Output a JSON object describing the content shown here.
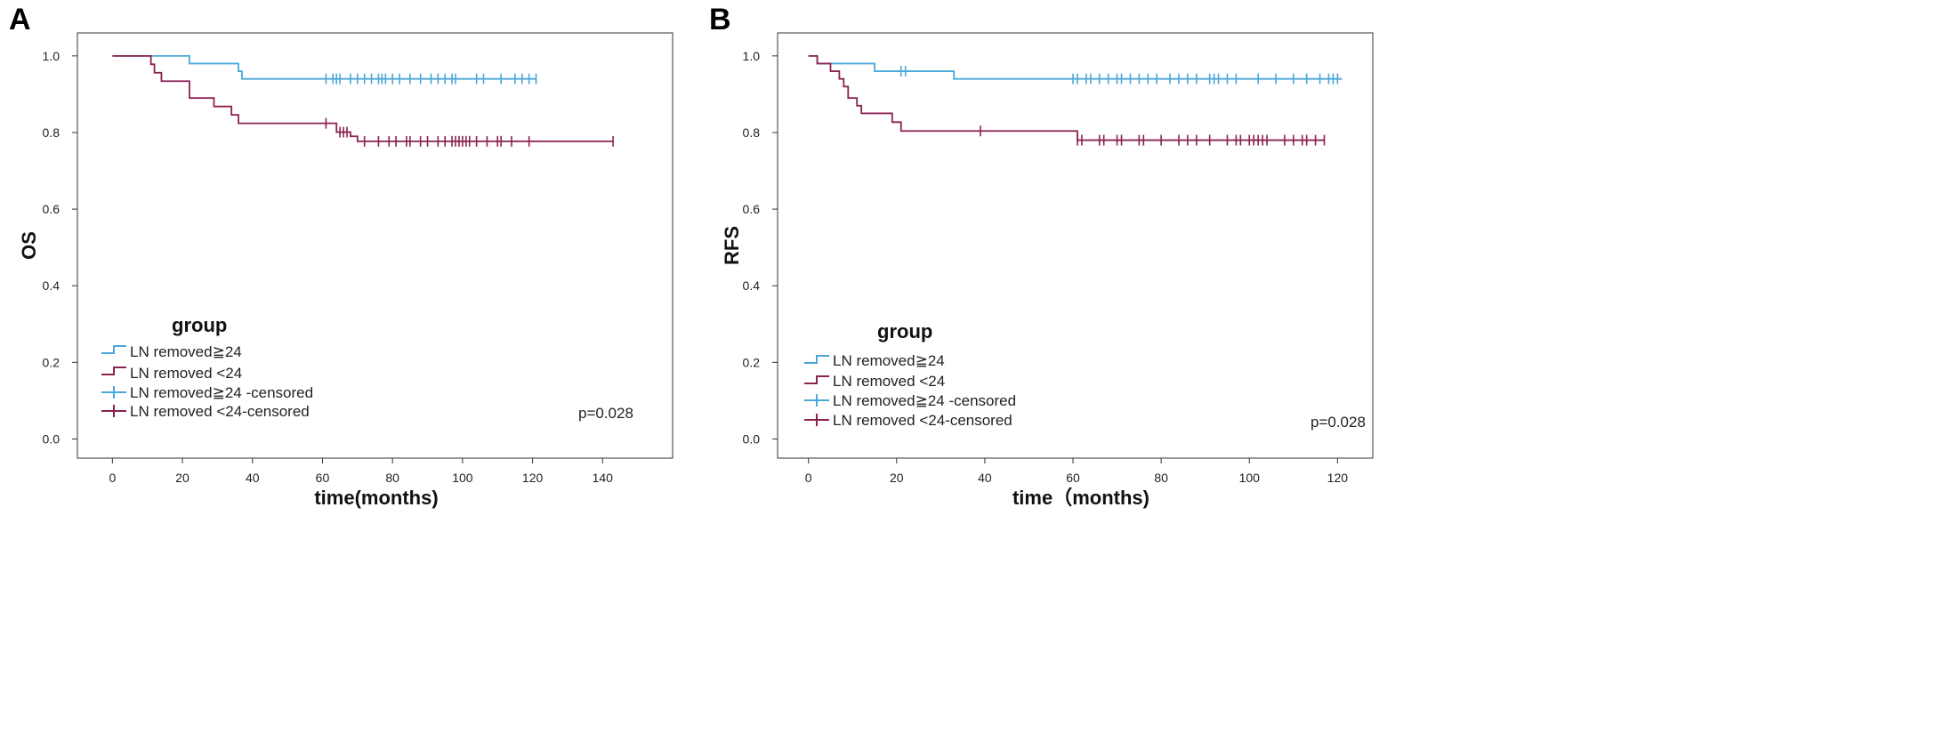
{
  "chart_data": [
    {
      "type": "line",
      "panel_label": "A",
      "ylabel": "OS",
      "xlabel": "time(months)",
      "xlim": [
        -10,
        160
      ],
      "ylim": [
        -0.05,
        1.06
      ],
      "xticks": [
        0,
        20,
        40,
        60,
        80,
        100,
        120,
        140
      ],
      "yticks": [
        0.0,
        0.2,
        0.4,
        0.6,
        0.8,
        1.0
      ],
      "ytick_labels": [
        "0.0",
        "0.2",
        "0.4",
        "0.6",
        "0.8",
        "1.0"
      ],
      "legend": {
        "title": "group",
        "entries": [
          "LN removed≧24",
          "LN removed <24",
          "LN removed≧24 -censored",
          "LN removed <24-censored"
        ]
      },
      "annotation": "p=0.028",
      "series": [
        {
          "name": "LN removed≧24",
          "color": "#4aa8d8",
          "steps": [
            [
              0,
              1.0
            ],
            [
              22,
              0.98
            ],
            [
              36,
              0.96
            ],
            [
              37,
              0.94
            ],
            [
              121,
              0.94
            ]
          ],
          "censored_x": [
            61,
            63,
            64,
            65,
            68,
            70,
            72,
            74,
            76,
            77,
            78,
            80,
            82,
            85,
            88,
            91,
            93,
            95,
            97,
            98,
            104,
            106,
            111,
            115,
            117,
            119,
            121
          ]
        },
        {
          "name": "LN removed <24",
          "color": "#8b2252",
          "steps": [
            [
              0,
              1.0
            ],
            [
              11,
              0.978
            ],
            [
              12,
              0.956
            ],
            [
              14,
              0.934
            ],
            [
              22,
              0.89
            ],
            [
              29,
              0.868
            ],
            [
              34,
              0.846
            ],
            [
              36,
              0.824
            ],
            [
              62,
              0.824
            ],
            [
              64,
              0.801
            ],
            [
              68,
              0.79
            ],
            [
              70,
              0.777
            ],
            [
              143,
              0.777
            ]
          ],
          "censored_x": [
            61,
            65,
            66,
            67,
            72,
            76,
            79,
            81,
            84,
            85,
            88,
            90,
            93,
            95,
            97,
            98,
            99,
            100,
            101,
            102,
            104,
            107,
            110,
            111,
            114,
            119,
            143
          ]
        }
      ]
    },
    {
      "type": "line",
      "panel_label": "B",
      "ylabel": "RFS",
      "xlabel": "time（months)",
      "xlim": [
        -7,
        128
      ],
      "ylim": [
        -0.05,
        1.06
      ],
      "xticks": [
        0,
        20,
        40,
        60,
        80,
        100,
        120
      ],
      "yticks": [
        0.0,
        0.2,
        0.4,
        0.6,
        0.8,
        1.0
      ],
      "ytick_labels": [
        "0.0",
        "0.2",
        "0.4",
        "0.6",
        "0.8",
        "1.0"
      ],
      "legend": {
        "title": "group",
        "entries": [
          "LN removed≧24",
          "LN removed <24",
          "LN removed≧24 -censored",
          "LN removed <24-censored"
        ]
      },
      "annotation": "p=0.028",
      "series": [
        {
          "name": "LN removed≧24",
          "color": "#4aa8d8",
          "steps": [
            [
              0,
              1.0
            ],
            [
              2,
              0.98
            ],
            [
              15,
              0.96
            ],
            [
              33,
              0.94
            ],
            [
              121,
              0.94
            ]
          ],
          "censored_x": [
            21,
            22,
            60,
            61,
            63,
            64,
            66,
            68,
            70,
            71,
            73,
            75,
            77,
            79,
            82,
            84,
            86,
            88,
            91,
            92,
            93,
            95,
            97,
            102,
            106,
            110,
            113,
            116,
            118,
            119,
            120
          ]
        },
        {
          "name": "LN removed <24",
          "color": "#8b2252",
          "steps": [
            [
              0,
              1.0
            ],
            [
              2,
              0.98
            ],
            [
              5,
              0.96
            ],
            [
              7,
              0.94
            ],
            [
              8,
              0.92
            ],
            [
              9,
              0.89
            ],
            [
              11,
              0.87
            ],
            [
              12,
              0.85
            ],
            [
              19,
              0.827
            ],
            [
              21,
              0.804
            ],
            [
              25,
              0.804
            ],
            [
              60,
              0.804
            ],
            [
              61,
              0.78
            ],
            [
              117,
              0.78
            ]
          ],
          "censored_x": [
            39,
            61,
            62,
            66,
            67,
            70,
            71,
            75,
            76,
            80,
            84,
            86,
            88,
            91,
            95,
            97,
            98,
            100,
            101,
            102,
            103,
            104,
            108,
            110,
            112,
            113,
            115,
            117
          ]
        }
      ]
    }
  ]
}
